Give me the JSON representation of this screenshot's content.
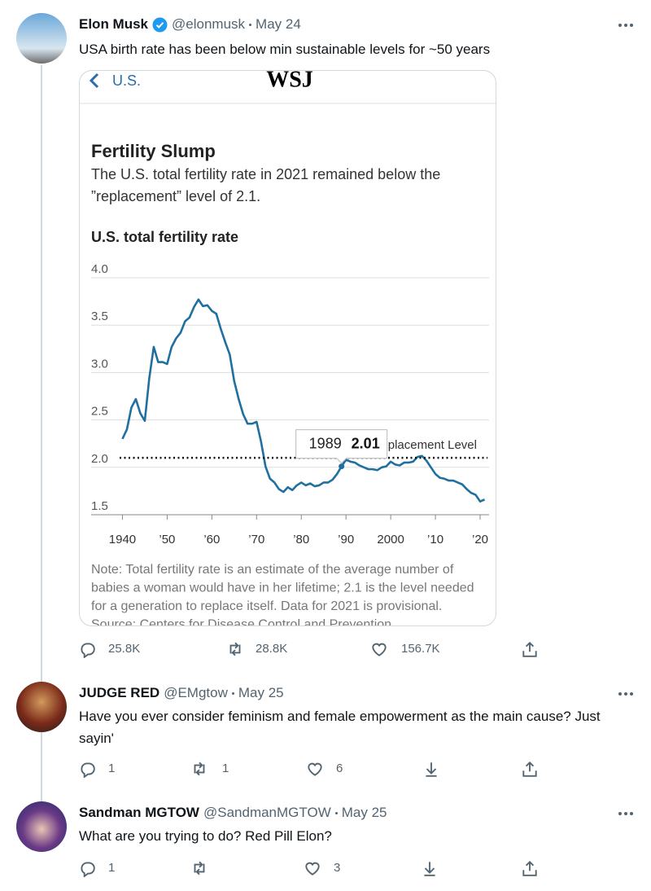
{
  "tweets": [
    {
      "name": "Elon Musk",
      "handle": "@elonmusk",
      "date": "May 24",
      "text": "USA birth rate has been below min sustainable levels for ~50 years",
      "replies": "25.8K",
      "retweets": "28.8K",
      "likes": "156.7K"
    },
    {
      "name": "JUDGE RED",
      "handle": "@EMgtow",
      "date": "May 25",
      "text": "Have you ever consider feminism and female empowerment as the main cause? Just sayin'",
      "replies": "1",
      "retweets": "1",
      "likes": "6"
    },
    {
      "name": "Sandman MGTOW",
      "handle": "@SandmanMGTOW",
      "date": "May 25",
      "text": "What are you trying to do? Red Pill Elon?",
      "replies": "1",
      "likes": "3"
    }
  ],
  "card": {
    "back": "U.S.",
    "brand": "WSJ"
  },
  "chart_data": {
    "type": "line",
    "title": "Fertility Slump",
    "subtitle": [
      "The U.S. total fertility rate in 2021 remained below the",
      "”replacement” level of 2.1."
    ],
    "y_label": "U.S. total fertility rate",
    "x": [
      1940,
      1941,
      1942,
      1943,
      1944,
      1945,
      1946,
      1947,
      1948,
      1949,
      1950,
      1951,
      1952,
      1953,
      1954,
      1955,
      1956,
      1957,
      1958,
      1959,
      1960,
      1961,
      1962,
      1963,
      1964,
      1965,
      1966,
      1967,
      1968,
      1969,
      1970,
      1971,
      1972,
      1973,
      1974,
      1975,
      1976,
      1977,
      1978,
      1979,
      1980,
      1981,
      1982,
      1983,
      1984,
      1985,
      1986,
      1987,
      1988,
      1989,
      1990,
      1991,
      1992,
      1993,
      1994,
      1995,
      1996,
      1997,
      1998,
      1999,
      2000,
      2001,
      2002,
      2003,
      2004,
      2005,
      2006,
      2007,
      2008,
      2009,
      2010,
      2011,
      2012,
      2013,
      2014,
      2015,
      2016,
      2017,
      2018,
      2019,
      2020,
      2021
    ],
    "series": [
      {
        "color": "#1f6f9f",
        "values": [
          2.3,
          2.4,
          2.63,
          2.72,
          2.57,
          2.49,
          2.94,
          3.27,
          3.11,
          3.11,
          3.09,
          3.27,
          3.36,
          3.42,
          3.54,
          3.58,
          3.69,
          3.77,
          3.7,
          3.71,
          3.65,
          3.62,
          3.46,
          3.32,
          3.19,
          2.91,
          2.72,
          2.56,
          2.46,
          2.46,
          2.48,
          2.27,
          2.01,
          1.88,
          1.84,
          1.77,
          1.74,
          1.79,
          1.76,
          1.81,
          1.84,
          1.81,
          1.83,
          1.8,
          1.81,
          1.84,
          1.84,
          1.87,
          1.93,
          2.01,
          2.08,
          2.06,
          2.05,
          2.02,
          2.0,
          1.98,
          1.98,
          1.97,
          2.0,
          2.01,
          2.06,
          2.03,
          2.02,
          2.05,
          2.05,
          2.06,
          2.11,
          2.12,
          2.07,
          2.0,
          1.93,
          1.89,
          1.88,
          1.86,
          1.86,
          1.84,
          1.82,
          1.77,
          1.73,
          1.71,
          1.64,
          1.66
        ]
      }
    ],
    "xlim": [
      1933,
      2022
    ],
    "xticks": [
      1940,
      {
        "value": 1950,
        "label": "’50"
      },
      {
        "value": 1960,
        "label": "’60"
      },
      {
        "value": 1970,
        "label": "’70"
      },
      {
        "value": 1980,
        "label": "’80"
      },
      {
        "value": 1990,
        "label": "’90"
      },
      2000,
      {
        "value": 2010,
        "label": "’10"
      },
      {
        "value": 2020,
        "label": "’20"
      }
    ],
    "ylim": [
      1.5,
      4.0
    ],
    "yticks": [
      {
        "value": 1.5,
        "label": "1.5"
      },
      {
        "value": 2.0,
        "label": "2.0"
      },
      {
        "value": 2.5,
        "label": "2.5"
      },
      {
        "value": 3.0,
        "label": "3.0"
      },
      {
        "value": 3.5,
        "label": "3.5"
      },
      {
        "value": 4.0,
        "label": "4.0"
      }
    ],
    "grid": true,
    "reference": {
      "value": 2.1,
      "label": "Replacement Level"
    },
    "tooltip": {
      "x": 1989,
      "value": 2.01
    },
    "note": [
      "Note: Total fertility rate is an estimate of the average number of",
      "babies a woman would have in her lifetime; 2.1 is the level needed",
      "for a generation to replace itself. Data for 2021 is provisional.",
      "Source: Centers for Disease Control and Prevention"
    ]
  }
}
